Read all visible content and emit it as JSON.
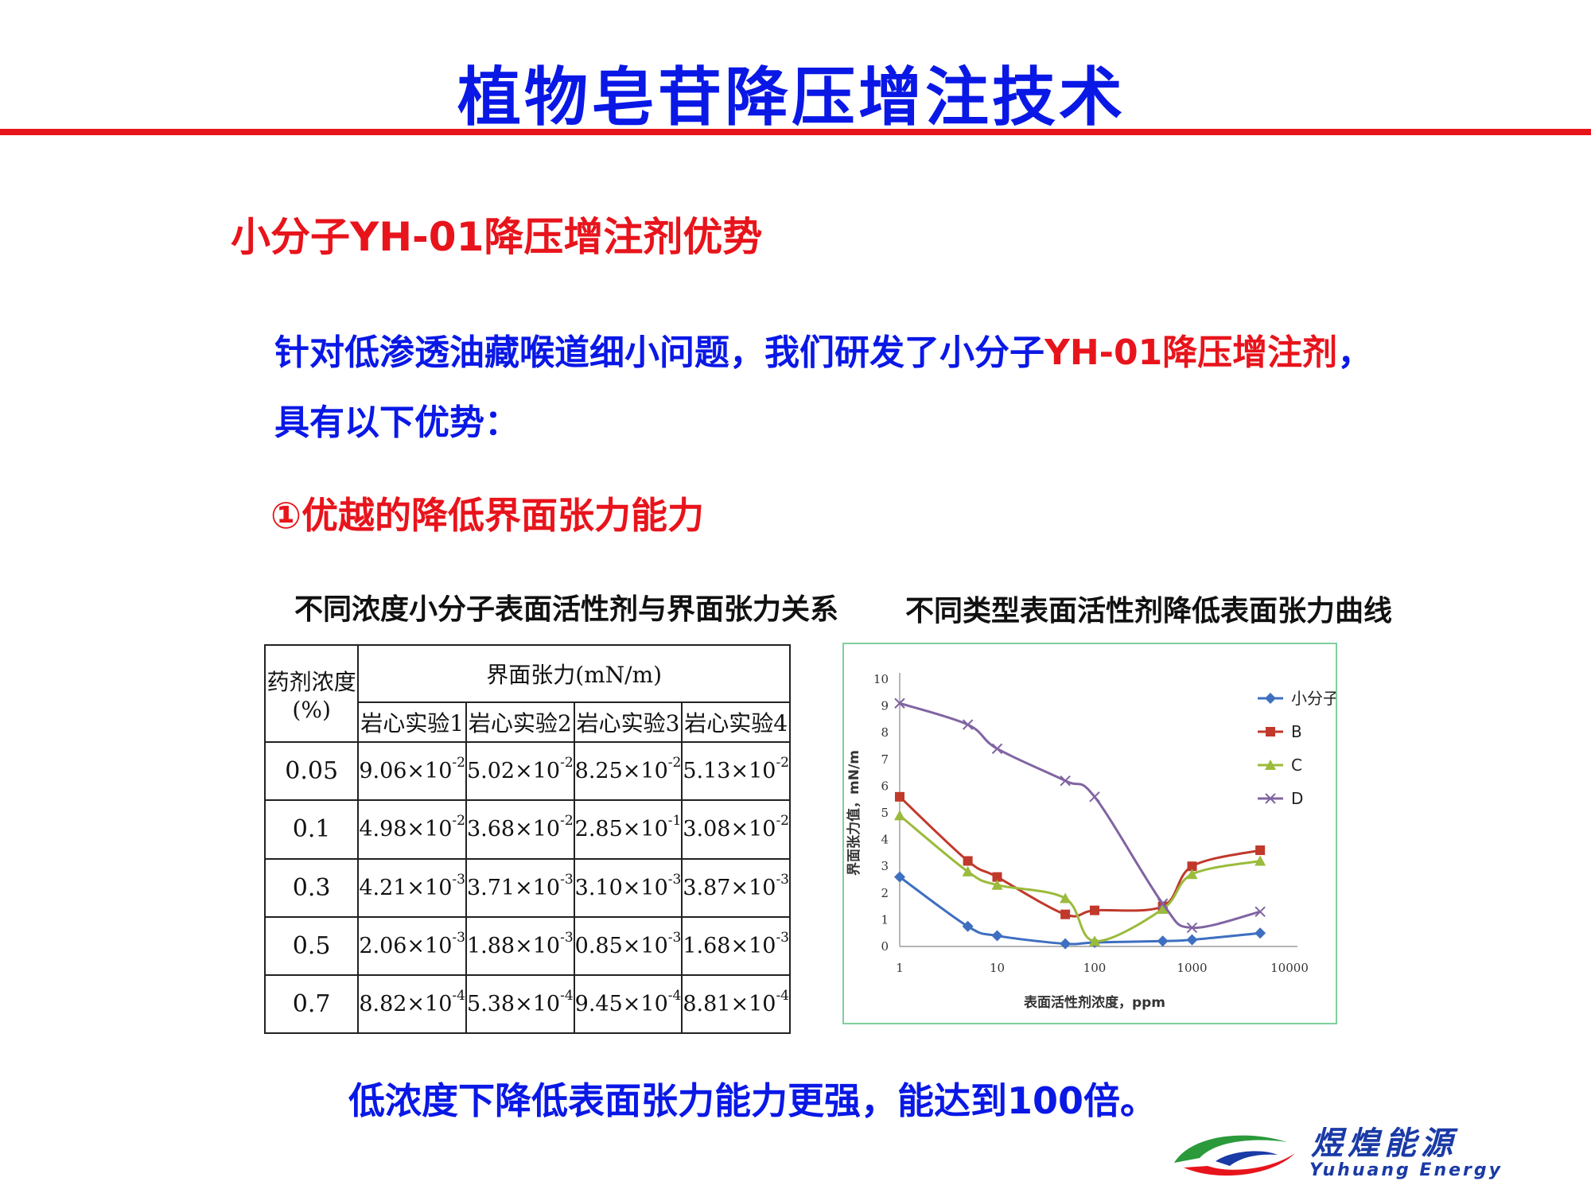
{
  "title": "植物皂苷降压增注技术",
  "subtitle": "小分子YH-01降压增注剂优势",
  "intro": {
    "part1": "针对低渗透油藏喉道细小问题，我们研发了小分子",
    "part2": "YH-01降压增注剂",
    "part3": "，具有以下优势："
  },
  "point1": "①优越的降低界面张力能力",
  "table": {
    "caption": "不同浓度小分子表面活性剂与界面张力关系",
    "row_header": "药剂浓度(%)",
    "group_header": "界面张力(mN/m)",
    "columns": [
      "岩心实验1",
      "岩心实验2",
      "岩心实验3",
      "岩心实验4"
    ],
    "rows": [
      {
        "conc": "0.05",
        "cells": [
          {
            "m": "9.06×10",
            "e": "-2"
          },
          {
            "m": "5.02×10",
            "e": "-2"
          },
          {
            "m": "8.25×10",
            "e": "-2"
          },
          {
            "m": "5.13×10",
            "e": "-2"
          }
        ]
      },
      {
        "conc": "0.1",
        "cells": [
          {
            "m": "4.98×10",
            "e": "-2"
          },
          {
            "m": "3.68×10",
            "e": "-2"
          },
          {
            "m": "2.85×10",
            "e": "-1"
          },
          {
            "m": "3.08×10",
            "e": "-2"
          }
        ]
      },
      {
        "conc": "0.3",
        "cells": [
          {
            "m": "4.21×10",
            "e": "-3"
          },
          {
            "m": "3.71×10",
            "e": "-3"
          },
          {
            "m": "3.10×10",
            "e": "-3"
          },
          {
            "m": "3.87×10",
            "e": "-3"
          }
        ]
      },
      {
        "conc": "0.5",
        "cells": [
          {
            "m": "2.06×10",
            "e": "-3"
          },
          {
            "m": "1.88×10",
            "e": "-3"
          },
          {
            "m": "0.85×10",
            "e": "-3"
          },
          {
            "m": "1.68×10",
            "e": "-3"
          }
        ]
      },
      {
        "conc": "0.7",
        "cells": [
          {
            "m": "8.82×10",
            "e": "-4"
          },
          {
            "m": "5.38×10",
            "e": "-4"
          },
          {
            "m": "9.45×10",
            "e": "-4"
          },
          {
            "m": "8.81×10",
            "e": "-4"
          }
        ]
      }
    ]
  },
  "chart_caption": "不同类型表面活性剂降低表面张力曲线",
  "chart_data": {
    "type": "line",
    "title": "",
    "xlabel": "表面活性剂浓度，ppm",
    "ylabel": "界面张力值，mN/m",
    "x_scale": "log",
    "xlim": [
      1,
      10000
    ],
    "ylim": [
      0,
      10
    ],
    "x_ticks": [
      "1",
      "10",
      "100",
      "1000",
      "10000"
    ],
    "y_ticks": [
      "0",
      "1",
      "2",
      "3",
      "4",
      "5",
      "6",
      "7",
      "8",
      "9",
      "10"
    ],
    "grid": false,
    "legend_position": "top-right",
    "series": [
      {
        "name": "小分子",
        "color": "#3e6fc0",
        "marker": "diamond",
        "x": [
          1,
          5,
          10,
          50,
          100,
          500,
          1000,
          5000
        ],
        "y": [
          2.6,
          0.75,
          0.4,
          0.1,
          0.15,
          0.2,
          0.25,
          0.5
        ]
      },
      {
        "name": "B",
        "color": "#c0392b",
        "marker": "square",
        "x": [
          1,
          5,
          10,
          50,
          100,
          500,
          1000,
          5000
        ],
        "y": [
          5.6,
          3.2,
          2.6,
          1.2,
          1.35,
          1.5,
          3.0,
          3.6
        ]
      },
      {
        "name": "C",
        "color": "#9bbb3c",
        "marker": "triangle",
        "x": [
          1,
          5,
          10,
          50,
          100,
          500,
          1000,
          5000
        ],
        "y": [
          4.9,
          2.8,
          2.3,
          1.8,
          0.2,
          1.4,
          2.7,
          3.2
        ]
      },
      {
        "name": "D",
        "color": "#8064a2",
        "marker": "x",
        "x": [
          1,
          5,
          10,
          50,
          100,
          500,
          1000,
          5000
        ],
        "y": [
          9.1,
          8.3,
          7.4,
          6.2,
          5.6,
          1.6,
          0.7,
          1.3
        ]
      }
    ]
  },
  "conclusion": "低浓度下降低表面张力能力更强，能达到100倍。",
  "logo": {
    "name": "煜煌能源",
    "sub": "Yuhuang Energy"
  }
}
